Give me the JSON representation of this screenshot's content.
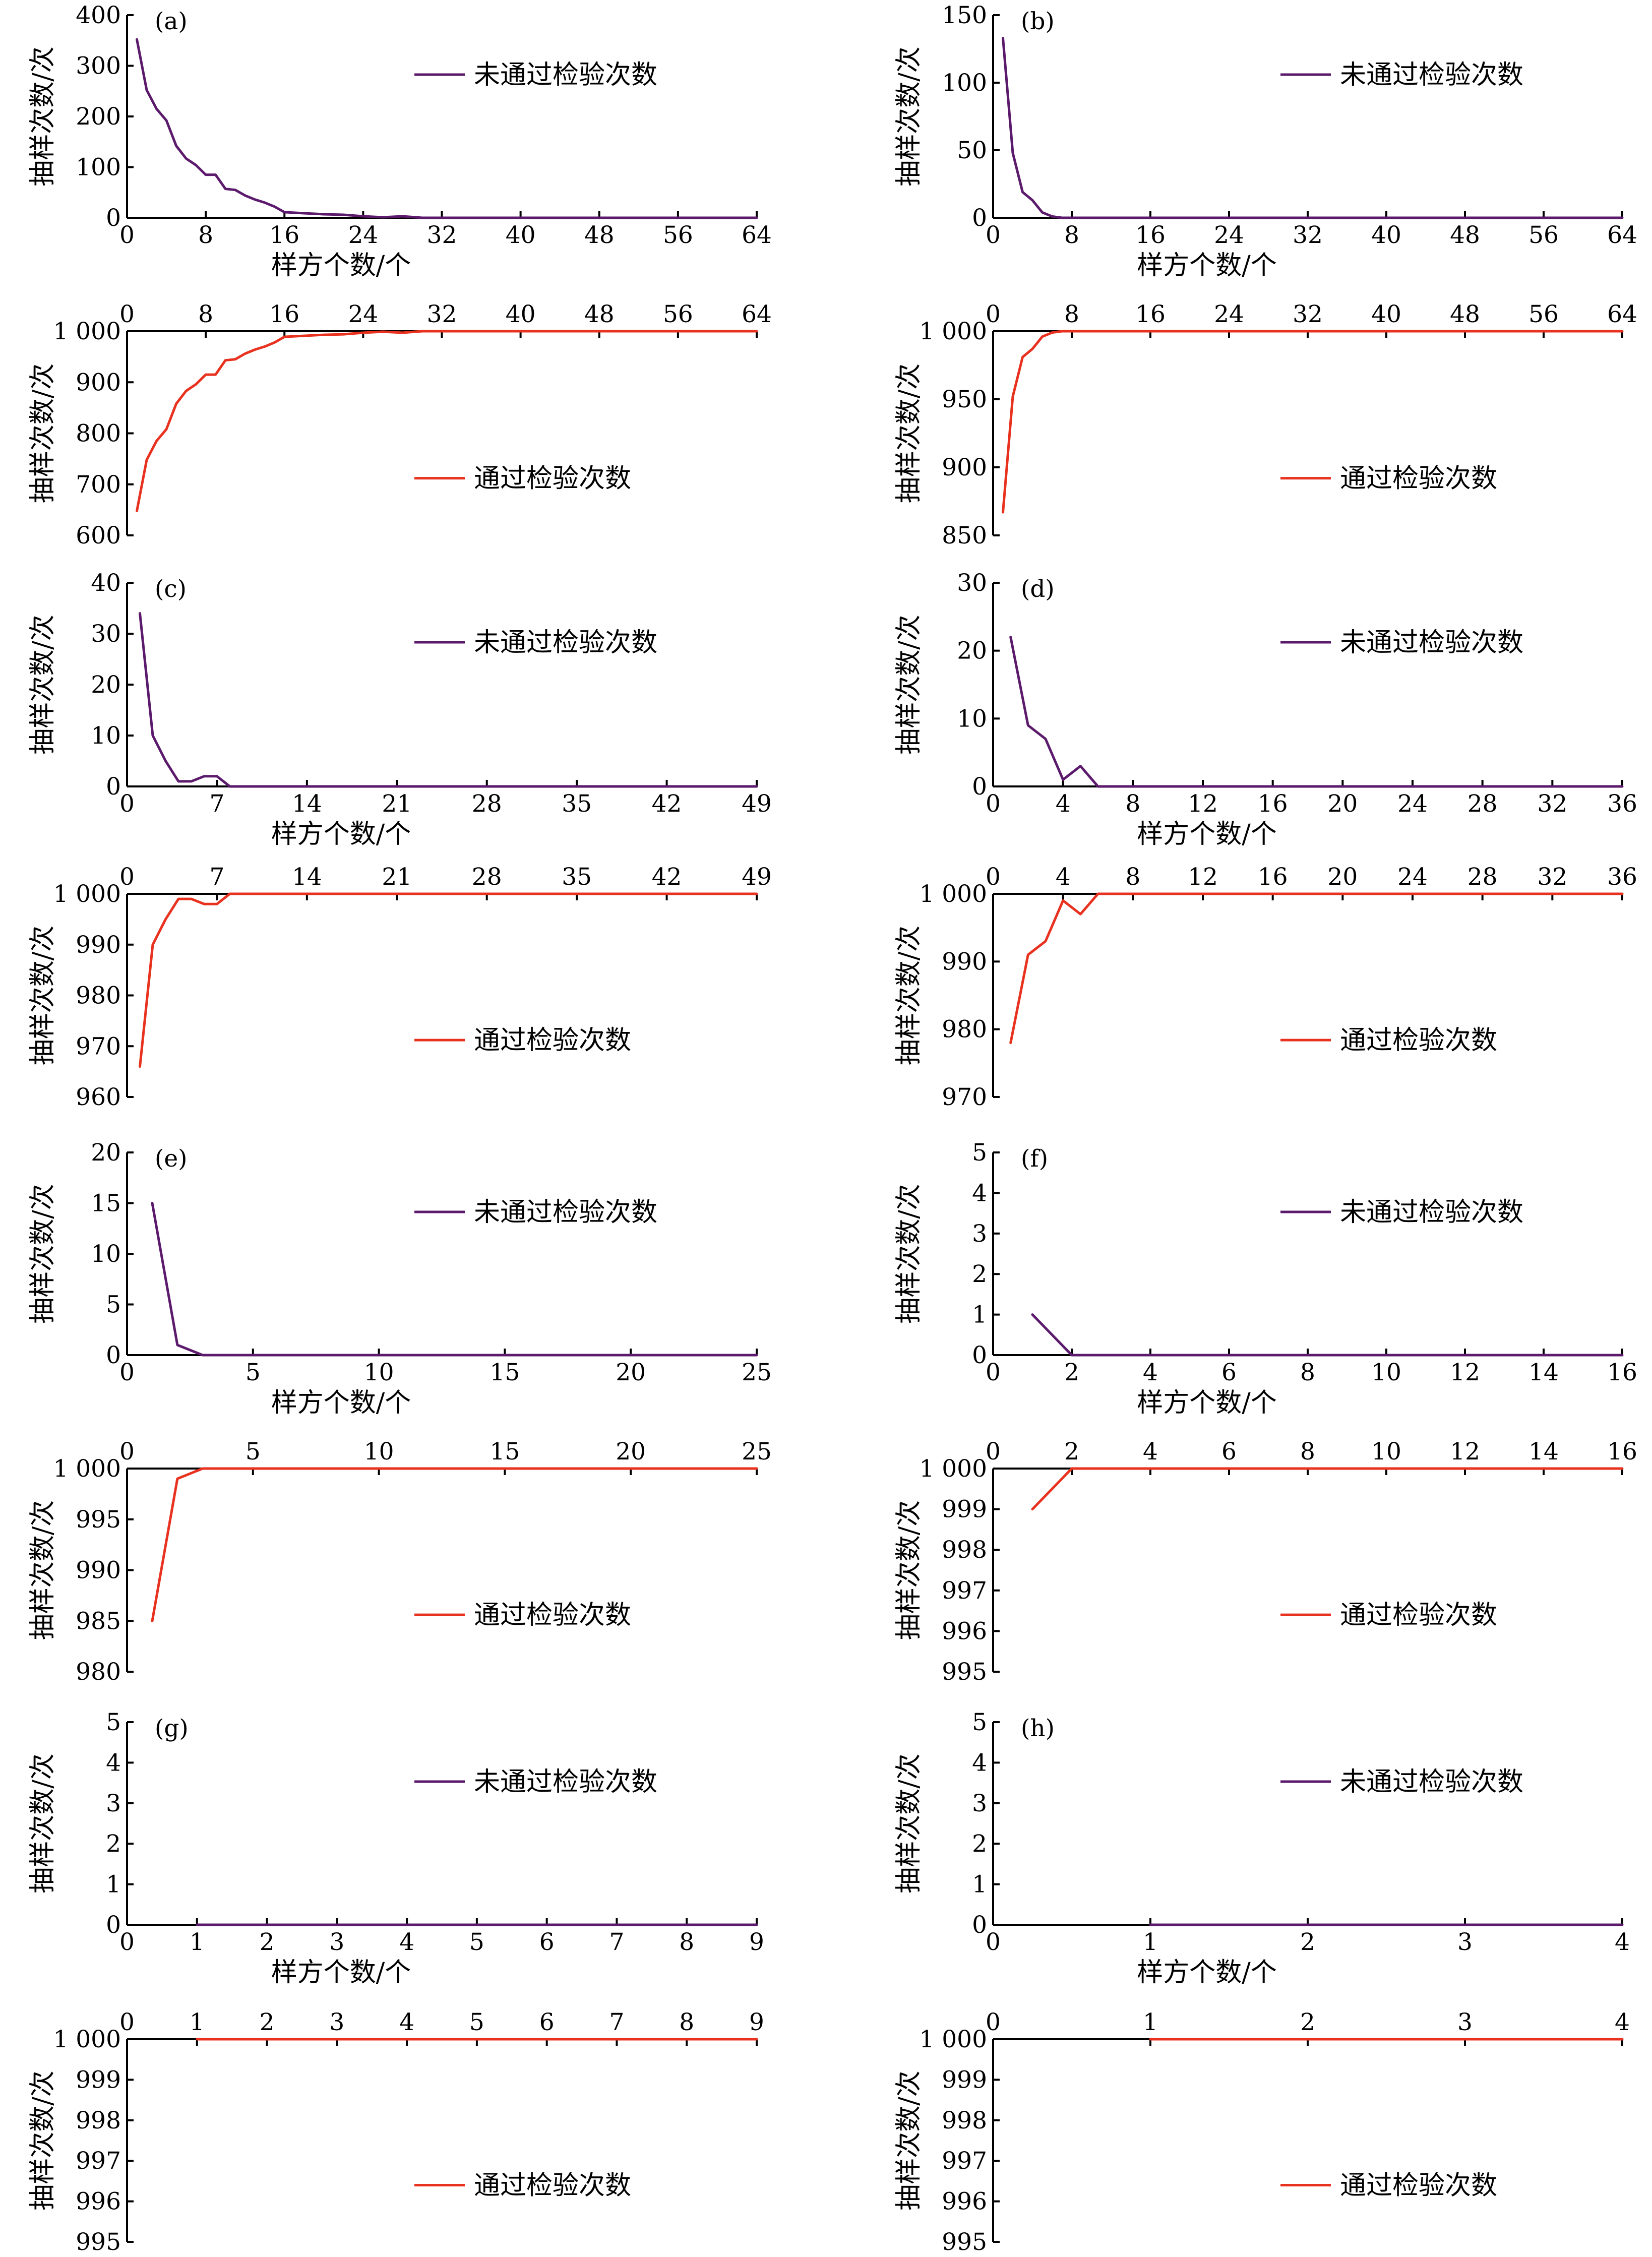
{
  "colors": {
    "failed": "#5b1a6b",
    "passed": "#e8321f",
    "axis": "#000000"
  },
  "chart_data": [
    {
      "type": "line",
      "id": "a-fail",
      "letter": "(a)",
      "legend": "未通过检验次数",
      "ylabel": "抽样次数/次",
      "xlabel": "样方个数/个",
      "xlim": [
        0,
        64
      ],
      "ylim": [
        0,
        400
      ],
      "xticks": [
        "0",
        "8",
        "16",
        "24",
        "32",
        "40",
        "48",
        "56",
        "64"
      ],
      "yticks": [
        "0",
        "100",
        "200",
        "300",
        "400"
      ],
      "color": "#5b1a6b",
      "xtick_side": "bottom",
      "x": [
        1,
        2,
        3,
        4,
        5,
        6,
        7,
        8,
        9,
        10,
        11,
        12,
        13,
        14,
        15,
        16,
        18,
        20,
        22,
        24,
        26,
        28,
        30,
        64
      ],
      "y": [
        352,
        252,
        215,
        192,
        142,
        117,
        104,
        85,
        85,
        57,
        55,
        44,
        36,
        30,
        22,
        11,
        9,
        7,
        6,
        3,
        1,
        3,
        0,
        0
      ]
    },
    {
      "type": "line",
      "id": "a-pass",
      "letter": "",
      "legend": "通过检验次数",
      "ylabel": "抽样次数/次",
      "xlabel": "",
      "xlim": [
        0,
        64
      ],
      "ylim": [
        600,
        1000
      ],
      "xticks": [
        "0",
        "8",
        "16",
        "24",
        "32",
        "40",
        "48",
        "56",
        "64"
      ],
      "yticks": [
        "600",
        "700",
        "800",
        "900",
        "1 000"
      ],
      "color": "#e8321f",
      "xtick_side": "top",
      "x": [
        1,
        2,
        3,
        4,
        5,
        6,
        7,
        8,
        9,
        10,
        11,
        12,
        13,
        14,
        15,
        16,
        18,
        20,
        22,
        24,
        26,
        28,
        30,
        64
      ],
      "y": [
        648,
        748,
        785,
        808,
        858,
        883,
        896,
        915,
        915,
        943,
        945,
        956,
        964,
        970,
        978,
        989,
        991,
        993,
        994,
        997,
        999,
        997,
        1000,
        1000
      ]
    },
    {
      "type": "line",
      "id": "b-fail",
      "letter": "(b)",
      "legend": "未通过检验次数",
      "ylabel": "抽样次数/次",
      "xlabel": "样方个数/个",
      "xlim": [
        0,
        64
      ],
      "ylim": [
        0,
        150
      ],
      "xticks": [
        "0",
        "8",
        "16",
        "24",
        "32",
        "40",
        "48",
        "56",
        "64"
      ],
      "yticks": [
        "0",
        "50",
        "100",
        "150"
      ],
      "color": "#5b1a6b",
      "xtick_side": "bottom",
      "x": [
        1,
        2,
        3,
        4,
        5,
        6,
        7,
        8,
        64
      ],
      "y": [
        133,
        48,
        19,
        13,
        4,
        1,
        0,
        0,
        0
      ]
    },
    {
      "type": "line",
      "id": "b-pass",
      "letter": "",
      "legend": "通过检验次数",
      "ylabel": "抽样次数/次",
      "xlabel": "",
      "xlim": [
        0,
        64
      ],
      "ylim": [
        850,
        1000
      ],
      "xticks": [
        "0",
        "8",
        "16",
        "24",
        "32",
        "40",
        "48",
        "56",
        "64"
      ],
      "yticks": [
        "850",
        "900",
        "950",
        "1 000"
      ],
      "color": "#e8321f",
      "xtick_side": "top",
      "x": [
        1,
        2,
        3,
        4,
        5,
        6,
        7,
        8,
        64
      ],
      "y": [
        867,
        952,
        981,
        987,
        996,
        999,
        1000,
        1000,
        1000
      ]
    },
    {
      "type": "line",
      "id": "c-fail",
      "letter": "(c)",
      "legend": "未通过检验次数",
      "ylabel": "抽样次数/次",
      "xlabel": "样方个数/个",
      "xlim": [
        0,
        49
      ],
      "ylim": [
        0,
        40
      ],
      "xticks": [
        "0",
        "7",
        "14",
        "21",
        "28",
        "35",
        "42",
        "49"
      ],
      "yticks": [
        "0",
        "10",
        "20",
        "30",
        "40"
      ],
      "color": "#5b1a6b",
      "xtick_side": "bottom",
      "x": [
        1,
        2,
        3,
        4,
        5,
        6,
        7,
        8,
        49
      ],
      "y": [
        34,
        10,
        5,
        1,
        1,
        2,
        2,
        0,
        0
      ]
    },
    {
      "type": "line",
      "id": "c-pass",
      "letter": "",
      "legend": "通过检验次数",
      "ylabel": "抽样次数/次",
      "xlabel": "",
      "xlim": [
        0,
        49
      ],
      "ylim": [
        960,
        1000
      ],
      "xticks": [
        "0",
        "7",
        "14",
        "21",
        "28",
        "35",
        "42",
        "49"
      ],
      "yticks": [
        "960",
        "970",
        "980",
        "990",
        "1 000"
      ],
      "color": "#e8321f",
      "xtick_side": "top",
      "x": [
        1,
        2,
        3,
        4,
        5,
        6,
        7,
        8,
        49
      ],
      "y": [
        966,
        990,
        995,
        999,
        999,
        998,
        998,
        1000,
        1000
      ]
    },
    {
      "type": "line",
      "id": "d-fail",
      "letter": "(d)",
      "legend": "未通过检验次数",
      "ylabel": "抽样次数/次",
      "xlabel": "样方个数/个",
      "xlim": [
        0,
        36
      ],
      "ylim": [
        0,
        30
      ],
      "xticks": [
        "0",
        "4",
        "8",
        "12",
        "16",
        "20",
        "24",
        "28",
        "32",
        "36"
      ],
      "yticks": [
        "0",
        "10",
        "20",
        "30"
      ],
      "color": "#5b1a6b",
      "xtick_side": "bottom",
      "x": [
        1,
        2,
        3,
        4,
        5,
        6,
        36
      ],
      "y": [
        22,
        9,
        7,
        1,
        3,
        0,
        0
      ]
    },
    {
      "type": "line",
      "id": "d-pass",
      "letter": "",
      "legend": "通过检验次数",
      "ylabel": "抽样次数/次",
      "xlabel": "",
      "xlim": [
        0,
        36
      ],
      "ylim": [
        970,
        1000
      ],
      "xticks": [
        "0",
        "4",
        "8",
        "12",
        "16",
        "20",
        "24",
        "28",
        "32",
        "36"
      ],
      "yticks": [
        "970",
        "980",
        "990",
        "1 000"
      ],
      "color": "#e8321f",
      "xtick_side": "top",
      "x": [
        1,
        2,
        3,
        4,
        5,
        6,
        36
      ],
      "y": [
        978,
        991,
        993,
        999,
        997,
        1000,
        1000
      ]
    },
    {
      "type": "line",
      "id": "e-fail",
      "letter": "(e)",
      "legend": "未通过检验次数",
      "ylabel": "抽样次数/次",
      "xlabel": "样方个数/个",
      "xlim": [
        0,
        25
      ],
      "ylim": [
        0,
        20
      ],
      "xticks": [
        "0",
        "5",
        "10",
        "15",
        "20",
        "25"
      ],
      "yticks": [
        "0",
        "5",
        "10",
        "15",
        "20"
      ],
      "color": "#5b1a6b",
      "xtick_side": "bottom",
      "x": [
        1,
        2,
        3,
        25
      ],
      "y": [
        15,
        1,
        0,
        0
      ]
    },
    {
      "type": "line",
      "id": "e-pass",
      "letter": "",
      "legend": "通过检验次数",
      "ylabel": "抽样次数/次",
      "xlabel": "",
      "xlim": [
        0,
        25
      ],
      "ylim": [
        980,
        1000
      ],
      "xticks": [
        "0",
        "5",
        "10",
        "15",
        "20",
        "25"
      ],
      "yticks": [
        "980",
        "985",
        "990",
        "995",
        "1 000"
      ],
      "color": "#e8321f",
      "xtick_side": "top",
      "x": [
        1,
        2,
        3,
        25
      ],
      "y": [
        985,
        999,
        1000,
        1000
      ]
    },
    {
      "type": "line",
      "id": "f-fail",
      "letter": "(f)",
      "legend": "未通过检验次数",
      "ylabel": "抽样次数/次",
      "xlabel": "样方个数/个",
      "xlim": [
        0,
        16
      ],
      "ylim": [
        0,
        5
      ],
      "xticks": [
        "0",
        "2",
        "4",
        "6",
        "8",
        "10",
        "12",
        "14",
        "16"
      ],
      "yticks": [
        "0",
        "1",
        "2",
        "3",
        "4",
        "5"
      ],
      "color": "#5b1a6b",
      "xtick_side": "bottom",
      "x": [
        1,
        2,
        16
      ],
      "y": [
        1,
        0,
        0
      ]
    },
    {
      "type": "line",
      "id": "f-pass",
      "letter": "",
      "legend": "通过检验次数",
      "ylabel": "抽样次数/次",
      "xlabel": "",
      "xlim": [
        0,
        16
      ],
      "ylim": [
        995,
        1000
      ],
      "xticks": [
        "0",
        "2",
        "4",
        "6",
        "8",
        "10",
        "12",
        "14",
        "16"
      ],
      "yticks": [
        "995",
        "996",
        "997",
        "998",
        "999",
        "1 000"
      ],
      "color": "#e8321f",
      "xtick_side": "top",
      "x": [
        1,
        2,
        16
      ],
      "y": [
        999,
        1000,
        1000
      ]
    },
    {
      "type": "line",
      "id": "g-fail",
      "letter": "(g)",
      "legend": "未通过检验次数",
      "ylabel": "抽样次数/次",
      "xlabel": "样方个数/个",
      "xlim": [
        0,
        9
      ],
      "ylim": [
        0,
        5
      ],
      "xticks": [
        "0",
        "1",
        "2",
        "3",
        "4",
        "5",
        "6",
        "7",
        "8",
        "9"
      ],
      "yticks": [
        "0",
        "1",
        "2",
        "3",
        "4",
        "5"
      ],
      "color": "#5b1a6b",
      "xtick_side": "bottom",
      "x": [
        1,
        9
      ],
      "y": [
        0,
        0
      ]
    },
    {
      "type": "line",
      "id": "g-pass",
      "letter": "",
      "legend": "通过检验次数",
      "ylabel": "抽样次数/次",
      "xlabel": "",
      "xlim": [
        0,
        9
      ],
      "ylim": [
        995,
        1000
      ],
      "xticks": [
        "0",
        "1",
        "2",
        "3",
        "4",
        "5",
        "6",
        "7",
        "8",
        "9"
      ],
      "yticks": [
        "995",
        "996",
        "997",
        "998",
        "999",
        "1 000"
      ],
      "color": "#e8321f",
      "xtick_side": "top",
      "x": [
        1,
        9
      ],
      "y": [
        1000,
        1000
      ]
    },
    {
      "type": "line",
      "id": "h-fail",
      "letter": "(h)",
      "legend": "未通过检验次数",
      "ylabel": "抽样次数/次",
      "xlabel": "样方个数/个",
      "xlim": [
        0,
        4
      ],
      "ylim": [
        0,
        5
      ],
      "xticks": [
        "0",
        "1",
        "2",
        "3",
        "4"
      ],
      "yticks": [
        "0",
        "1",
        "2",
        "3",
        "4",
        "5"
      ],
      "color": "#5b1a6b",
      "xtick_side": "bottom",
      "x": [
        1,
        4
      ],
      "y": [
        0,
        0
      ]
    },
    {
      "type": "line",
      "id": "h-pass",
      "letter": "",
      "legend": "通过检验次数",
      "ylabel": "抽样次数/次",
      "xlabel": "",
      "xlim": [
        0,
        4
      ],
      "ylim": [
        995,
        1000
      ],
      "xticks": [
        "0",
        "1",
        "2",
        "3",
        "4"
      ],
      "yticks": [
        "995",
        "996",
        "997",
        "998",
        "999",
        "1 000"
      ],
      "color": "#e8321f",
      "xtick_side": "top",
      "x": [
        1,
        4
      ],
      "y": [
        1000,
        1000
      ]
    }
  ]
}
